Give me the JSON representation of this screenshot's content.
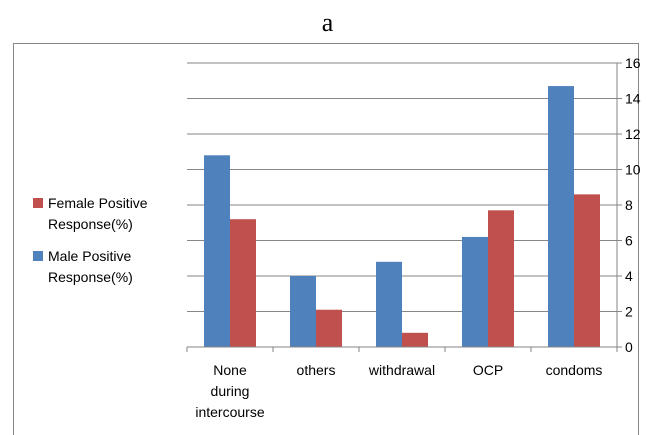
{
  "chart_data": {
    "type": "bar",
    "title": "a",
    "categories": [
      [
        "None",
        "during",
        "intercourse"
      ],
      [
        "others"
      ],
      [
        "withdrawal"
      ],
      [
        "OCP"
      ],
      [
        "condoms"
      ]
    ],
    "series": [
      {
        "name": "Male Positive Response(%)",
        "color": "#4f81bd",
        "values": [
          10.8,
          4.0,
          4.8,
          6.2,
          14.7
        ]
      },
      {
        "name": "Female Positive Response(%)",
        "color": "#c0504d",
        "values": [
          7.2,
          2.1,
          0.8,
          7.7,
          8.6
        ]
      }
    ],
    "legend_order": [
      1,
      0
    ],
    "legend_position": "left",
    "y_axis_side": "right",
    "ylim": [
      0,
      16
    ],
    "yticks": [
      0,
      2,
      4,
      6,
      8,
      10,
      12,
      14,
      16
    ],
    "grid": true,
    "xlabel": "",
    "ylabel": ""
  }
}
